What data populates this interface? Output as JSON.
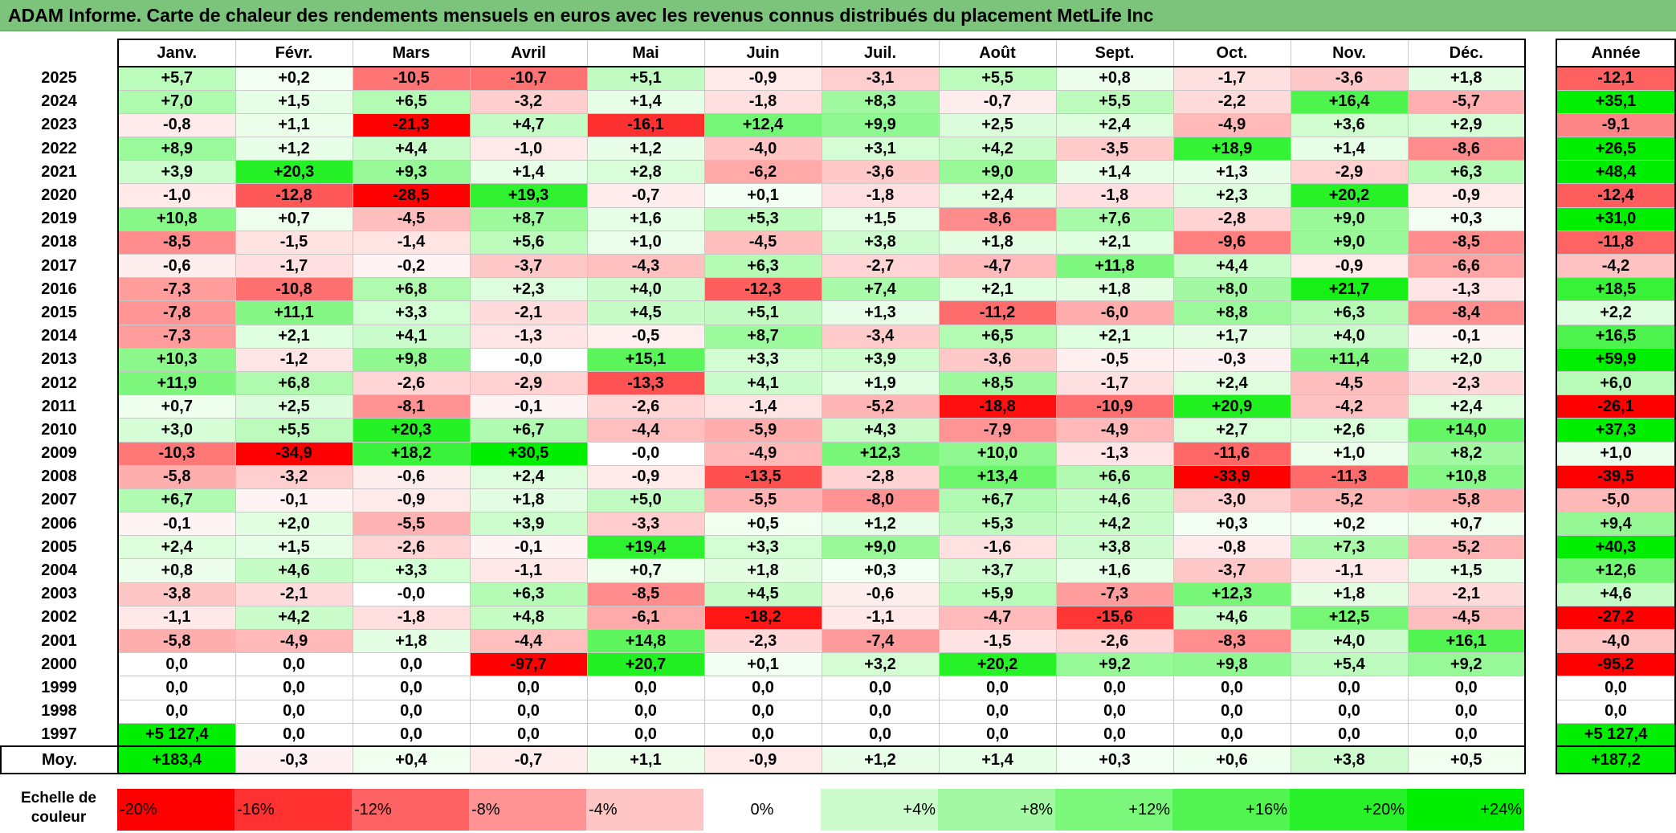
{
  "title": "ADAM Informe. Carte de chaleur des rendements mensuels en euros avec les revenus connus distribués du placement MetLife Inc",
  "months": [
    "Janv.",
    "Févr.",
    "Mars",
    "Avril",
    "Mai",
    "Juin",
    "Juil.",
    "Août",
    "Sept.",
    "Oct.",
    "Nov.",
    "Déc."
  ],
  "annual_header": "Année",
  "avg_label": "Moy.",
  "scale_label_line1": "Echelle de",
  "scale_label_line2": "couleur",
  "colors": {
    "title_bar": "#7cc47c",
    "negative_max": "#ff0000",
    "neutral": "#ffffff",
    "positive_max": "#00ee00"
  },
  "scale": [
    {
      "label": "-20%",
      "value": -20
    },
    {
      "label": "-16%",
      "value": -16
    },
    {
      "label": "-12%",
      "value": -12
    },
    {
      "label": "-8%",
      "value": -8
    },
    {
      "label": "-4%",
      "value": -4
    },
    {
      "label": "0%",
      "value": 0
    },
    {
      "label": "+4%",
      "value": 4
    },
    {
      "label": "+8%",
      "value": 8
    },
    {
      "label": "+12%",
      "value": 12
    },
    {
      "label": "+16%",
      "value": 16
    },
    {
      "label": "+20%",
      "value": 20
    },
    {
      "label": "+24%",
      "value": 24
    }
  ],
  "chart_data": {
    "type": "heatmap",
    "title": "ADAM Informe. Carte de chaleur des rendements mensuels en euros avec les revenus connus distribués du placement MetLife Inc",
    "columns": [
      "Janv.",
      "Févr.",
      "Mars",
      "Avril",
      "Mai",
      "Juin",
      "Juil.",
      "Août",
      "Sept.",
      "Oct.",
      "Nov.",
      "Déc."
    ],
    "rows": [
      {
        "year": "2025",
        "values": [
          "+5,7",
          "+0,2",
          "-10,5",
          "-10,7",
          "+5,1",
          "-0,9",
          "-3,1",
          "+5,5",
          "+0,8",
          "-1,7",
          "-3,6",
          "+1,8"
        ],
        "annual": "-12,1"
      },
      {
        "year": "2024",
        "values": [
          "+7,0",
          "+1,5",
          "+6,5",
          "-3,2",
          "+1,4",
          "-1,8",
          "+8,3",
          "-0,7",
          "+5,5",
          "-2,2",
          "+16,4",
          "-5,7"
        ],
        "annual": "+35,1"
      },
      {
        "year": "2023",
        "values": [
          "-0,8",
          "+1,1",
          "-21,3",
          "+4,7",
          "-16,1",
          "+12,4",
          "+9,9",
          "+2,5",
          "+2,4",
          "-4,9",
          "+3,6",
          "+2,9"
        ],
        "annual": "-9,1"
      },
      {
        "year": "2022",
        "values": [
          "+8,9",
          "+1,2",
          "+4,4",
          "-1,0",
          "+1,2",
          "-4,0",
          "+3,1",
          "+4,2",
          "-3,5",
          "+18,9",
          "+1,4",
          "-8,6"
        ],
        "annual": "+26,5"
      },
      {
        "year": "2021",
        "values": [
          "+3,9",
          "+20,3",
          "+9,3",
          "+1,4",
          "+2,8",
          "-6,2",
          "-3,6",
          "+9,0",
          "+1,4",
          "+1,3",
          "-2,9",
          "+6,3"
        ],
        "annual": "+48,4"
      },
      {
        "year": "2020",
        "values": [
          "-1,0",
          "-12,8",
          "-28,5",
          "+19,3",
          "-0,7",
          "+0,1",
          "-1,8",
          "+2,4",
          "-1,8",
          "+2,3",
          "+20,2",
          "-0,9"
        ],
        "annual": "-12,4"
      },
      {
        "year": "2019",
        "values": [
          "+10,8",
          "+0,7",
          "-4,5",
          "+8,7",
          "+1,6",
          "+5,3",
          "+1,5",
          "-8,6",
          "+7,6",
          "-2,8",
          "+9,0",
          "+0,3"
        ],
        "annual": "+31,0"
      },
      {
        "year": "2018",
        "values": [
          "-8,5",
          "-1,5",
          "-1,4",
          "+5,6",
          "+1,0",
          "-4,5",
          "+3,8",
          "+1,8",
          "+2,1",
          "-9,6",
          "+9,0",
          "-8,5"
        ],
        "annual": "-11,8"
      },
      {
        "year": "2017",
        "values": [
          "-0,6",
          "-1,7",
          "-0,2",
          "-3,7",
          "-4,3",
          "+6,3",
          "-2,7",
          "-4,7",
          "+11,8",
          "+4,4",
          "-0,9",
          "-6,6"
        ],
        "annual": "-4,2"
      },
      {
        "year": "2016",
        "values": [
          "-7,3",
          "-10,8",
          "+6,8",
          "+2,3",
          "+4,0",
          "-12,3",
          "+7,4",
          "+2,1",
          "+1,8",
          "+8,0",
          "+21,7",
          "-1,3"
        ],
        "annual": "+18,5"
      },
      {
        "year": "2015",
        "values": [
          "-7,8",
          "+11,1",
          "+3,3",
          "-2,1",
          "+4,5",
          "+5,1",
          "+1,3",
          "-11,2",
          "-6,0",
          "+8,8",
          "+6,3",
          "-8,4"
        ],
        "annual": "+2,2"
      },
      {
        "year": "2014",
        "values": [
          "-7,3",
          "+2,1",
          "+4,1",
          "-1,3",
          "-0,5",
          "+8,7",
          "-3,4",
          "+6,5",
          "+2,1",
          "+1,7",
          "+4,0",
          "-0,1"
        ],
        "annual": "+16,5"
      },
      {
        "year": "2013",
        "values": [
          "+10,3",
          "-1,2",
          "+9,8",
          "-0,0",
          "+15,1",
          "+3,3",
          "+3,9",
          "-3,6",
          "-0,5",
          "-0,3",
          "+11,4",
          "+2,0"
        ],
        "annual": "+59,9"
      },
      {
        "year": "2012",
        "values": [
          "+11,9",
          "+6,8",
          "-2,6",
          "-2,9",
          "-13,3",
          "+4,1",
          "+1,9",
          "+8,5",
          "-1,7",
          "+2,4",
          "-4,5",
          "-2,3"
        ],
        "annual": "+6,0"
      },
      {
        "year": "2011",
        "values": [
          "+0,7",
          "+2,5",
          "-8,1",
          "-0,1",
          "-2,6",
          "-1,4",
          "-5,2",
          "-18,8",
          "-10,9",
          "+20,9",
          "-4,2",
          "+2,4"
        ],
        "annual": "-26,1"
      },
      {
        "year": "2010",
        "values": [
          "+3,0",
          "+5,5",
          "+20,3",
          "+6,7",
          "-4,4",
          "-5,9",
          "+4,3",
          "-7,9",
          "-4,9",
          "+2,7",
          "+2,6",
          "+14,0"
        ],
        "annual": "+37,3"
      },
      {
        "year": "2009",
        "values": [
          "-10,3",
          "-34,9",
          "+18,2",
          "+30,5",
          "-0,0",
          "-4,9",
          "+12,3",
          "+10,0",
          "-1,3",
          "-11,6",
          "+1,0",
          "+8,2"
        ],
        "annual": "+1,0"
      },
      {
        "year": "2008",
        "values": [
          "-5,8",
          "-3,2",
          "-0,6",
          "+2,4",
          "-0,9",
          "-13,5",
          "-2,8",
          "+13,4",
          "+6,6",
          "-33,9",
          "-11,3",
          "+10,8"
        ],
        "annual": "-39,5"
      },
      {
        "year": "2007",
        "values": [
          "+6,7",
          "-0,1",
          "-0,9",
          "+1,8",
          "+5,0",
          "-5,5",
          "-8,0",
          "+6,7",
          "+4,6",
          "-3,0",
          "-5,2",
          "-5,8"
        ],
        "annual": "-5,0"
      },
      {
        "year": "2006",
        "values": [
          "-0,1",
          "+2,0",
          "-5,5",
          "+3,9",
          "-3,3",
          "+0,5",
          "+1,2",
          "+5,3",
          "+4,2",
          "+0,3",
          "+0,2",
          "+0,7"
        ],
        "annual": "+9,4"
      },
      {
        "year": "2005",
        "values": [
          "+2,4",
          "+1,5",
          "-2,6",
          "-0,1",
          "+19,4",
          "+3,3",
          "+9,0",
          "-1,6",
          "+3,8",
          "-0,8",
          "+7,3",
          "-5,2"
        ],
        "annual": "+40,3"
      },
      {
        "year": "2004",
        "values": [
          "+0,8",
          "+4,6",
          "+3,3",
          "-1,1",
          "+0,7",
          "+1,8",
          "+0,3",
          "+3,7",
          "+1,6",
          "-3,7",
          "-1,1",
          "+1,5"
        ],
        "annual": "+12,6"
      },
      {
        "year": "2003",
        "values": [
          "-3,8",
          "-2,1",
          "-0,0",
          "+6,3",
          "-8,5",
          "+4,5",
          "-0,6",
          "+5,9",
          "-7,3",
          "+12,3",
          "+1,8",
          "-2,1"
        ],
        "annual": "+4,6"
      },
      {
        "year": "2002",
        "values": [
          "-1,1",
          "+4,2",
          "-1,8",
          "+4,8",
          "-6,1",
          "-18,2",
          "-1,1",
          "-4,7",
          "-15,6",
          "+4,6",
          "+12,5",
          "-4,5"
        ],
        "annual": "-27,2"
      },
      {
        "year": "2001",
        "values": [
          "-5,8",
          "-4,9",
          "+1,8",
          "-4,4",
          "+14,8",
          "-2,3",
          "-7,4",
          "-1,5",
          "-2,6",
          "-8,3",
          "+4,0",
          "+16,1"
        ],
        "annual": "-4,0"
      },
      {
        "year": "2000",
        "values": [
          "0,0",
          "0,0",
          "0,0",
          "-97,7",
          "+20,7",
          "+0,1",
          "+3,2",
          "+20,2",
          "+9,2",
          "+9,8",
          "+5,4",
          "+9,2"
        ],
        "annual": "-95,2"
      },
      {
        "year": "1999",
        "values": [
          "0,0",
          "0,0",
          "0,0",
          "0,0",
          "0,0",
          "0,0",
          "0,0",
          "0,0",
          "0,0",
          "0,0",
          "0,0",
          "0,0"
        ],
        "annual": "0,0"
      },
      {
        "year": "1998",
        "values": [
          "0,0",
          "0,0",
          "0,0",
          "0,0",
          "0,0",
          "0,0",
          "0,0",
          "0,0",
          "0,0",
          "0,0",
          "0,0",
          "0,0"
        ],
        "annual": "0,0"
      },
      {
        "year": "1997",
        "values": [
          "+5 127,4",
          "0,0",
          "0,0",
          "0,0",
          "0,0",
          "0,0",
          "0,0",
          "0,0",
          "0,0",
          "0,0",
          "0,0",
          "0,0"
        ],
        "annual": "+5 127,4"
      }
    ],
    "average": {
      "values": [
        "+183,4",
        "-0,3",
        "+0,4",
        "-0,7",
        "+1,1",
        "-0,9",
        "+1,2",
        "+1,4",
        "+0,3",
        "+0,6",
        "+3,8",
        "+0,5"
      ],
      "annual": "+187,2"
    },
    "color_range": [
      -20,
      24
    ]
  }
}
